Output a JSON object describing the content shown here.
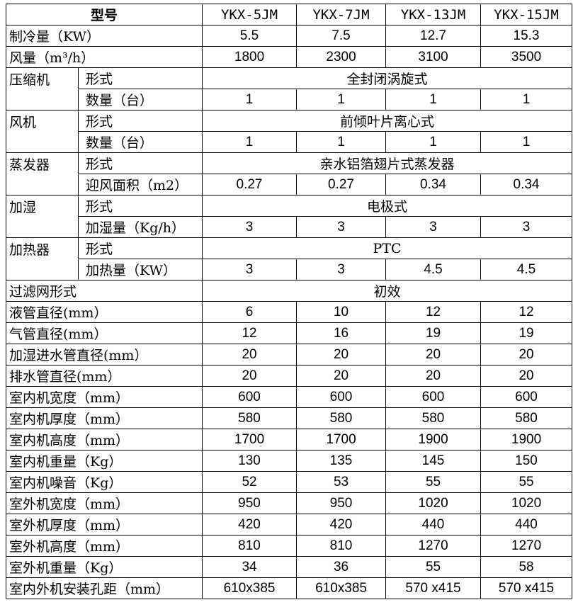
{
  "header": {
    "label": "型号",
    "models": [
      "YKX-5JM",
      "YKX-7JM",
      "YKX-13JM",
      "YKX-15JM"
    ]
  },
  "rows": [
    {
      "label": "制冷量（KW）",
      "values": [
        "5.5",
        "7.5",
        "12.7",
        "15.3"
      ]
    },
    {
      "label": "风量（m³/h）",
      "values": [
        "1800",
        "2300",
        "3100",
        "3500"
      ]
    },
    {
      "group": "压缩机",
      "sub": "形式",
      "merged": "全封闭涡旋式"
    },
    {
      "sub": "数量（台）",
      "values": [
        "1",
        "1",
        "1",
        "1"
      ]
    },
    {
      "group": "风机",
      "sub": "形式",
      "merged": "前倾叶片离心式"
    },
    {
      "sub": "数量（台）",
      "values": [
        "1",
        "1",
        "1",
        "1"
      ]
    },
    {
      "group": "蒸发器",
      "sub": "形式",
      "merged": "亲水铝箔翅片式蒸发器"
    },
    {
      "sub": "迎风面积（m2）",
      "values": [
        "0.27",
        "0.27",
        "0.34",
        "0.34"
      ]
    },
    {
      "group": "加湿",
      "sub": "形式",
      "merged": "电极式"
    },
    {
      "sub": "加湿量（Kg/h）",
      "values": [
        "3",
        "3",
        "3",
        "3"
      ]
    },
    {
      "group": "加热器",
      "sub": "形式",
      "merged": "PTC"
    },
    {
      "sub": "加热量（KW）",
      "values": [
        "3",
        "3",
        "4.5",
        "4.5"
      ]
    },
    {
      "label": "过滤网形式",
      "merged": "初效"
    },
    {
      "label": "液管直径(mm）",
      "values": [
        "6",
        "10",
        "12",
        "12"
      ]
    },
    {
      "label": "气管直径(mm）",
      "values": [
        "12",
        "16",
        "19",
        "19"
      ]
    },
    {
      "label": "加湿进水管直径(mm）",
      "values": [
        "20",
        "20",
        "20",
        "20"
      ]
    },
    {
      "label": "排水管直径(mm）",
      "values": [
        "20",
        "20",
        "20",
        "20"
      ]
    },
    {
      "label": "室内机宽度（mm）",
      "values": [
        "600",
        "600",
        "600",
        "600"
      ]
    },
    {
      "label": "室内机厚度（mm）",
      "values": [
        "580",
        "580",
        "580",
        "580"
      ]
    },
    {
      "label": "室内机高度（mm）",
      "values": [
        "1700",
        "1700",
        "1900",
        "1900"
      ]
    },
    {
      "label": "室内机重量（Kg）",
      "values": [
        "130",
        "135",
        "145",
        "150"
      ]
    },
    {
      "label": "室内机噪音（Kg）",
      "values": [
        "52",
        "53",
        "55",
        "55"
      ]
    },
    {
      "label": "室外机宽度（mm）",
      "values": [
        "950",
        "950",
        "1020",
        "1020"
      ]
    },
    {
      "label": "室外机厚度（mm）",
      "values": [
        "420",
        "420",
        "440",
        "440"
      ]
    },
    {
      "label": "室外机高度（mm）",
      "values": [
        "810",
        "810",
        "1270",
        "1270"
      ]
    },
    {
      "label": "室外机重量（Kg）",
      "values": [
        "34",
        "36",
        "55",
        "58"
      ]
    },
    {
      "label": "室内外机安装孔距（mm）",
      "values": [
        "610x385",
        "610x385",
        "570 x415",
        "570 x415"
      ]
    }
  ]
}
